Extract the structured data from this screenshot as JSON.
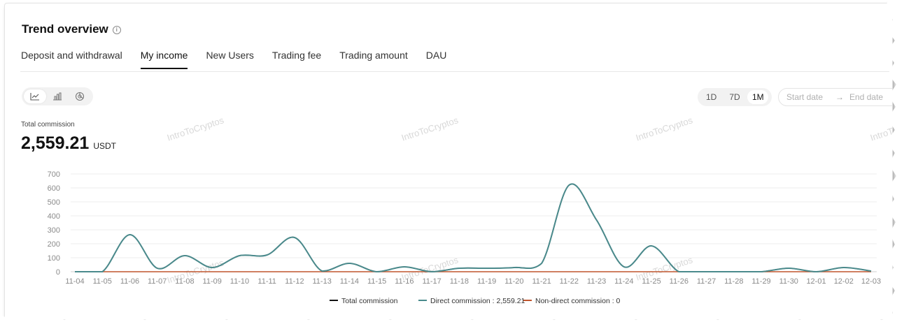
{
  "header": {
    "title": "Trend overview"
  },
  "tabs": [
    {
      "label": "Deposit and withdrawal",
      "active": false
    },
    {
      "label": "My income",
      "active": true
    },
    {
      "label": "New Users",
      "active": false
    },
    {
      "label": "Trading fee",
      "active": false
    },
    {
      "label": "Trading amount",
      "active": false
    },
    {
      "label": "DAU",
      "active": false
    }
  ],
  "chart_switch": [
    {
      "icon": "line-chart-icon",
      "active": true
    },
    {
      "icon": "bar-chart-icon",
      "active": false
    },
    {
      "icon": "pie-chart-icon",
      "active": false
    }
  ],
  "range": {
    "options": [
      "1D",
      "7D",
      "1M"
    ],
    "selected": "1M"
  },
  "date_range": {
    "start_placeholder": "Start date",
    "arrow": "→",
    "end_placeholder": "End date"
  },
  "summary": {
    "label": "Total commission",
    "value": "2,559.21",
    "unit": "USDT"
  },
  "watermark": "IntroToCryptos",
  "colors": {
    "direct": "#4a8a8c",
    "non_direct": "#c0552d",
    "total": "#121212",
    "accent": "#121212"
  },
  "chart_data": {
    "type": "line",
    "categories": [
      "11-04",
      "11-05",
      "11-06",
      "11-07",
      "11-08",
      "11-09",
      "11-10",
      "11-11",
      "11-12",
      "11-13",
      "11-14",
      "11-15",
      "11-16",
      "11-17",
      "11-18",
      "11-19",
      "11-20",
      "11-21",
      "11-22",
      "11-23",
      "11-24",
      "11-25",
      "11-26",
      "11-27",
      "11-28",
      "11-29",
      "11-30",
      "12-01",
      "12-02",
      "12-03"
    ],
    "y_ticks": [
      0,
      100,
      200,
      300,
      400,
      500,
      600,
      700
    ],
    "ylim": [
      0,
      700
    ],
    "grid": true,
    "legend_position": "bottom",
    "series": [
      {
        "name": "Total commission",
        "legend": "Total commission",
        "color": "#121212",
        "values": [
          0,
          0,
          265,
          25,
          115,
          30,
          115,
          120,
          245,
          5,
          60,
          0,
          35,
          0,
          25,
          25,
          30,
          60,
          620,
          370,
          35,
          185,
          0,
          0,
          0,
          0,
          25,
          0,
          30,
          5
        ]
      },
      {
        "name": "Direct commission",
        "legend": "Direct commission : 2,559.21",
        "color": "#4a8a8c",
        "values": [
          0,
          0,
          265,
          25,
          115,
          30,
          115,
          120,
          245,
          5,
          60,
          0,
          35,
          0,
          25,
          25,
          30,
          60,
          620,
          370,
          35,
          185,
          0,
          0,
          0,
          0,
          25,
          0,
          30,
          5
        ]
      },
      {
        "name": "Non-direct commission",
        "legend": "Non-direct commission : 0",
        "color": "#c0552d",
        "values": [
          0,
          0,
          0,
          0,
          0,
          0,
          0,
          0,
          0,
          0,
          0,
          0,
          0,
          0,
          0,
          0,
          0,
          0,
          0,
          0,
          0,
          0,
          0,
          0,
          0,
          0,
          0,
          0,
          0,
          0
        ]
      }
    ]
  }
}
